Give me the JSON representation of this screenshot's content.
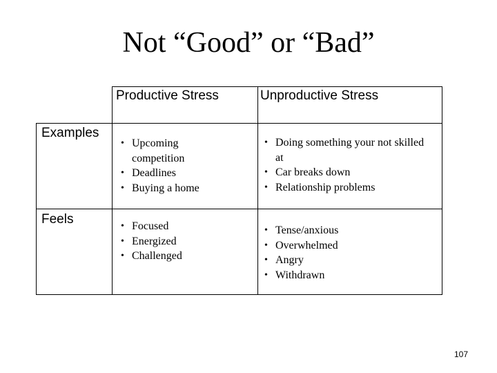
{
  "slide": {
    "title": "Not “Good” or “Bad”",
    "page_number": "107"
  },
  "table": {
    "columns": [
      "Productive Stress",
      "Unproductive Stress"
    ],
    "rows": [
      {
        "label": "Examples",
        "productive": [
          "Upcoming competition",
          "Deadlines",
          "Buying a home"
        ],
        "unproductive": [
          "Doing something your not skilled at",
          "Car breaks down",
          "Relationship problems"
        ]
      },
      {
        "label": "Feels",
        "productive": [
          "Focused",
          "Energized",
          "Challenged"
        ],
        "unproductive": [
          "Tense/anxious",
          "Overwhelmed",
          "Angry",
          "Withdrawn"
        ]
      }
    ]
  }
}
